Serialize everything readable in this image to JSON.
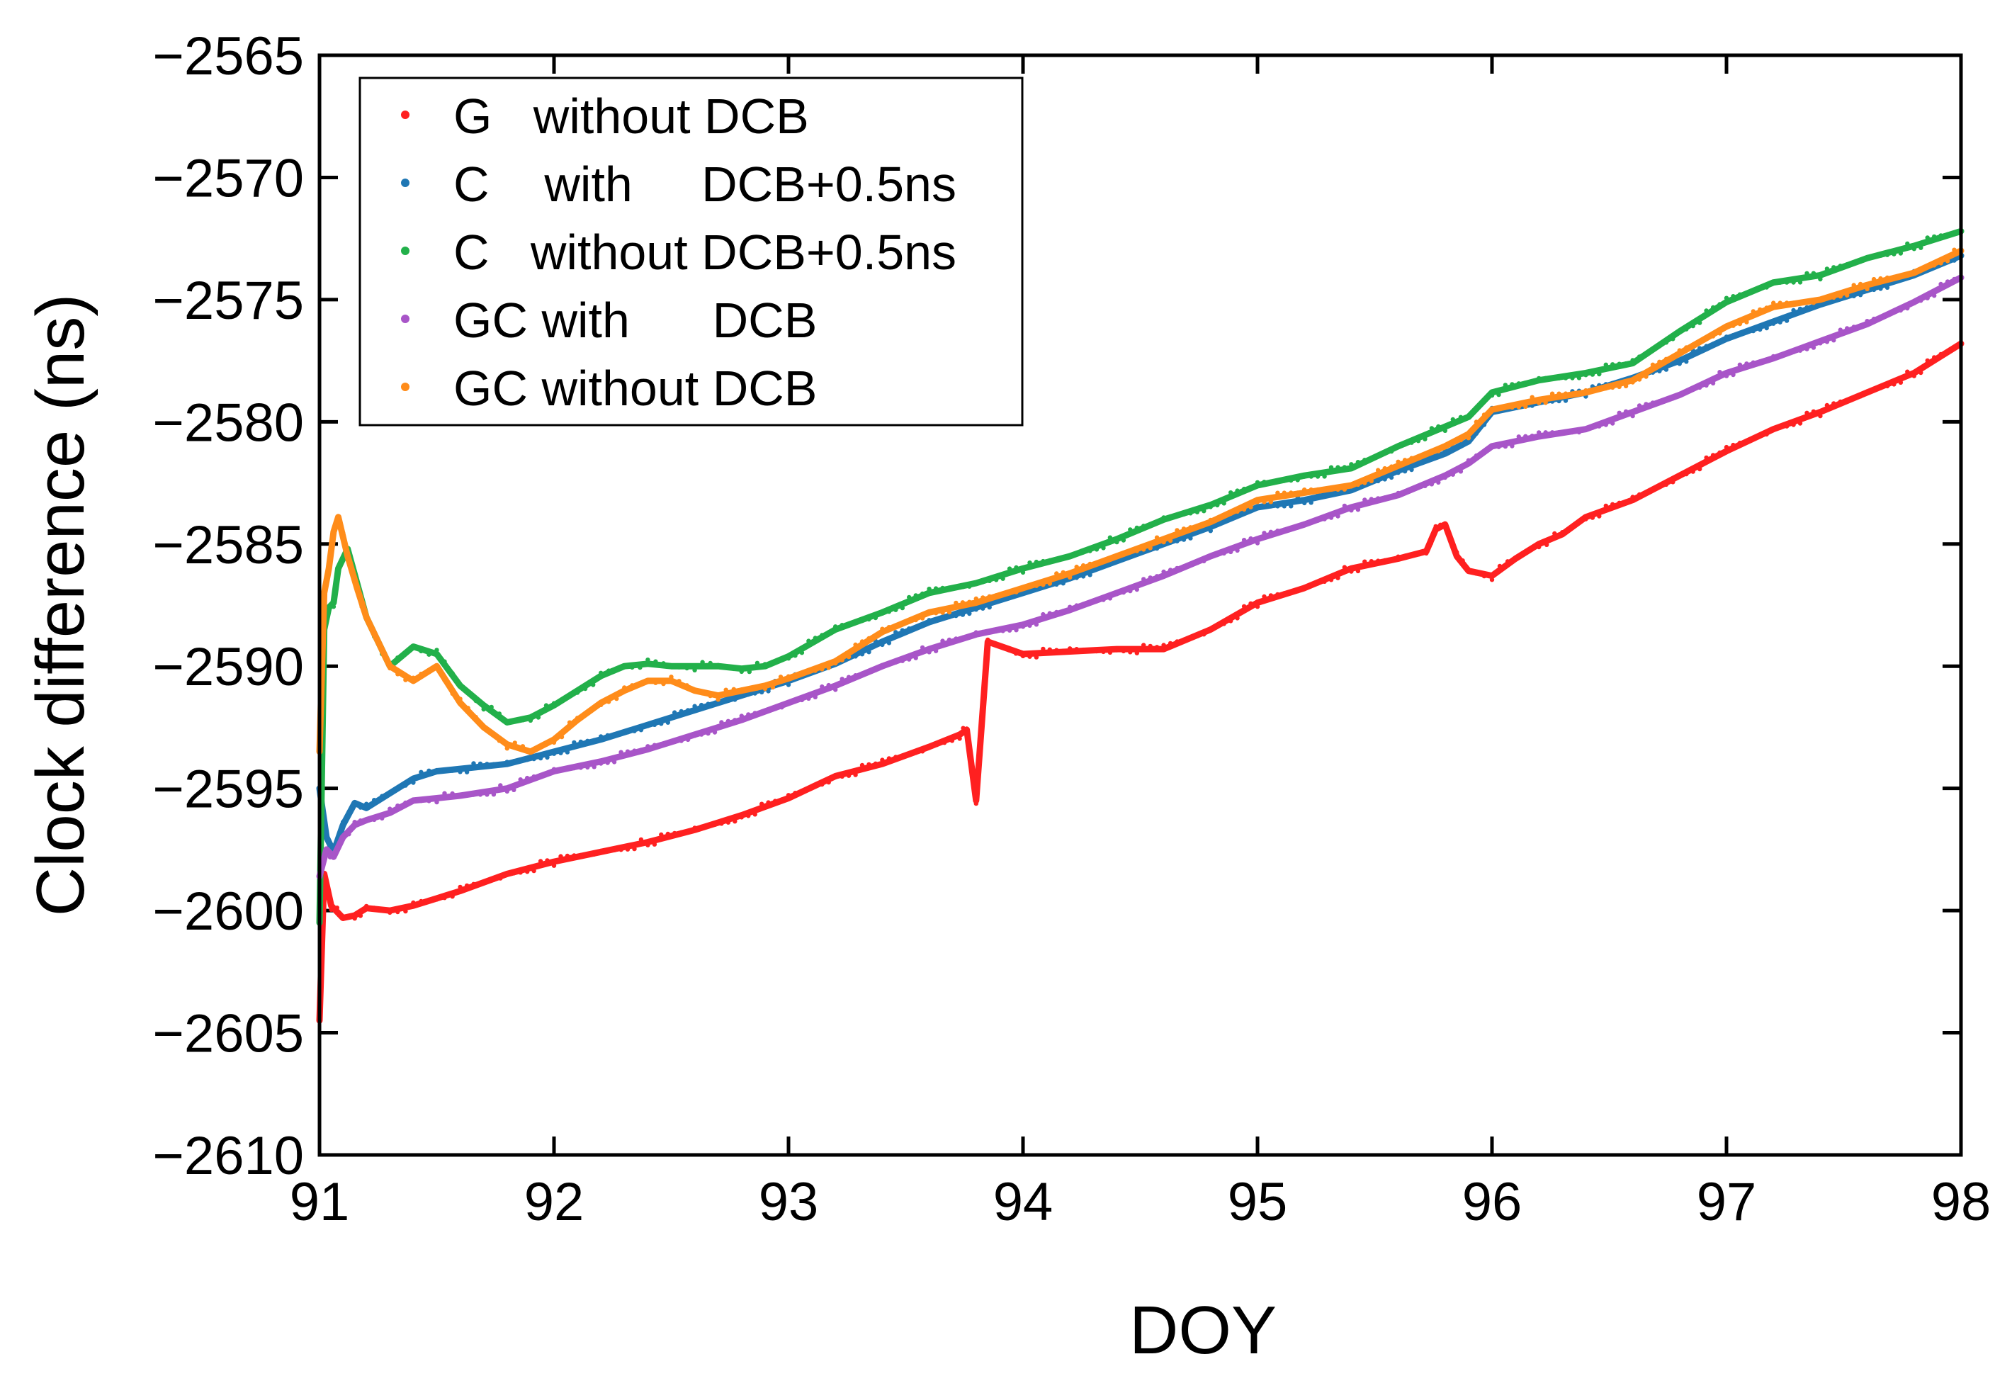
{
  "chart_data": {
    "type": "scatter",
    "title": "",
    "xlabel": "DOY",
    "ylabel": "Clock difference (ns)",
    "xlim": [
      91,
      98
    ],
    "ylim": [
      -2610,
      -2565
    ],
    "xticks": [
      "91",
      "92",
      "93",
      "94",
      "95",
      "96",
      "97",
      "98"
    ],
    "yticks": [
      "−2565",
      "−2570",
      "−2575",
      "−2580",
      "−2585",
      "−2590",
      "−2595",
      "−2600",
      "−2605",
      "−2610"
    ],
    "grid": false,
    "legend_position": "top-left",
    "series": [
      {
        "name": "G   without DCB",
        "color": "#ff2020",
        "x": [
          91.0,
          91.02,
          91.05,
          91.1,
          91.15,
          91.2,
          91.3,
          91.4,
          91.5,
          91.6,
          91.8,
          92.0,
          92.2,
          92.4,
          92.6,
          92.8,
          93.0,
          93.2,
          93.4,
          93.6,
          93.73,
          93.76,
          93.8,
          93.85,
          94.0,
          94.2,
          94.4,
          94.6,
          94.8,
          95.0,
          95.2,
          95.4,
          95.6,
          95.72,
          95.76,
          95.8,
          95.85,
          95.9,
          96.0,
          96.1,
          96.2,
          96.3,
          96.4,
          96.6,
          96.8,
          97.0,
          97.2,
          97.4,
          97.6,
          97.8,
          98.0
        ],
        "y": [
          -2604.5,
          -2598.5,
          -2599.8,
          -2600.3,
          -2600.2,
          -2599.9,
          -2600.0,
          -2599.8,
          -2599.5,
          -2599.2,
          -2598.5,
          -2598.0,
          -2597.6,
          -2597.2,
          -2596.7,
          -2596.1,
          -2595.4,
          -2594.5,
          -2594.0,
          -2593.3,
          -2592.8,
          -2592.6,
          -2595.5,
          -2589.0,
          -2589.5,
          -2589.4,
          -2589.3,
          -2589.3,
          -2588.5,
          -2587.4,
          -2586.8,
          -2586.0,
          -2585.6,
          -2585.3,
          -2584.4,
          -2584.2,
          -2585.5,
          -2586.1,
          -2586.3,
          -2585.6,
          -2585.0,
          -2584.6,
          -2583.9,
          -2583.2,
          -2582.2,
          -2581.2,
          -2580.3,
          -2579.6,
          -2578.8,
          -2578.0,
          -2576.8
        ]
      },
      {
        "name": "C    with     DCB+0.5ns",
        "color": "#1f77b4",
        "x": [
          91.0,
          91.03,
          91.06,
          91.1,
          91.15,
          91.2,
          91.3,
          91.4,
          91.5,
          91.6,
          91.8,
          92.0,
          92.2,
          92.4,
          92.6,
          92.8,
          93.0,
          93.2,
          93.4,
          93.6,
          93.8,
          94.0,
          94.2,
          94.4,
          94.6,
          94.8,
          95.0,
          95.2,
          95.4,
          95.6,
          95.8,
          95.9,
          96.0,
          96.2,
          96.4,
          96.6,
          96.8,
          97.0,
          97.2,
          97.4,
          97.6,
          97.8,
          98.0
        ],
        "y": [
          -2595.0,
          -2597.0,
          -2597.6,
          -2596.5,
          -2595.6,
          -2595.8,
          -2595.2,
          -2594.6,
          -2594.3,
          -2594.2,
          -2594.0,
          -2593.5,
          -2593.0,
          -2592.4,
          -2591.8,
          -2591.2,
          -2590.6,
          -2589.9,
          -2589.0,
          -2588.2,
          -2587.6,
          -2587.0,
          -2586.4,
          -2585.7,
          -2585.0,
          -2584.3,
          -2583.5,
          -2583.2,
          -2582.8,
          -2582.0,
          -2581.3,
          -2580.8,
          -2579.6,
          -2579.2,
          -2578.8,
          -2578.2,
          -2577.5,
          -2576.6,
          -2575.9,
          -2575.2,
          -2574.6,
          -2574.0,
          -2573.2
        ]
      },
      {
        "name": "C   without DCB+0.5ns",
        "color": "#22b04a",
        "x": [
          91.0,
          91.02,
          91.04,
          91.06,
          91.08,
          91.12,
          91.16,
          91.2,
          91.3,
          91.4,
          91.5,
          91.6,
          91.7,
          91.8,
          91.9,
          92.0,
          92.1,
          92.2,
          92.3,
          92.4,
          92.5,
          92.6,
          92.7,
          92.8,
          92.9,
          93.0,
          93.2,
          93.4,
          93.6,
          93.8,
          94.0,
          94.2,
          94.4,
          94.6,
          94.8,
          95.0,
          95.2,
          95.4,
          95.6,
          95.8,
          95.9,
          96.0,
          96.2,
          96.4,
          96.6,
          96.8,
          97.0,
          97.2,
          97.4,
          97.6,
          97.8,
          98.0
        ],
        "y": [
          -2600.5,
          -2588.5,
          -2587.6,
          -2587.4,
          -2586.0,
          -2585.2,
          -2586.6,
          -2588.0,
          -2590.0,
          -2589.2,
          -2589.5,
          -2590.8,
          -2591.6,
          -2592.3,
          -2592.1,
          -2591.6,
          -2591.0,
          -2590.4,
          -2590.0,
          -2589.9,
          -2590.0,
          -2590.0,
          -2590.0,
          -2590.1,
          -2590.0,
          -2589.6,
          -2588.5,
          -2587.8,
          -2587.0,
          -2586.6,
          -2586.0,
          -2585.5,
          -2584.8,
          -2584.0,
          -2583.4,
          -2582.6,
          -2582.2,
          -2581.9,
          -2581.0,
          -2580.2,
          -2579.8,
          -2578.8,
          -2578.3,
          -2578.0,
          -2577.6,
          -2576.3,
          -2575.1,
          -2574.3,
          -2574.0,
          -2573.3,
          -2572.8,
          -2572.2
        ]
      },
      {
        "name": "GC with      DCB",
        "color": "#a855c8",
        "x": [
          91.0,
          91.03,
          91.06,
          91.1,
          91.15,
          91.2,
          91.3,
          91.4,
          91.5,
          91.6,
          91.8,
          92.0,
          92.2,
          92.4,
          92.6,
          92.8,
          93.0,
          93.2,
          93.4,
          93.6,
          93.8,
          94.0,
          94.2,
          94.4,
          94.6,
          94.8,
          95.0,
          95.2,
          95.4,
          95.6,
          95.8,
          95.9,
          96.0,
          96.2,
          96.4,
          96.6,
          96.8,
          97.0,
          97.2,
          97.4,
          97.6,
          97.8,
          98.0
        ],
        "y": [
          -2598.6,
          -2597.5,
          -2597.8,
          -2597.0,
          -2596.5,
          -2596.3,
          -2596.0,
          -2595.5,
          -2595.4,
          -2595.3,
          -2595.0,
          -2594.3,
          -2593.9,
          -2593.4,
          -2592.8,
          -2592.2,
          -2591.5,
          -2590.8,
          -2590.0,
          -2589.3,
          -2588.7,
          -2588.3,
          -2587.7,
          -2587.0,
          -2586.3,
          -2585.5,
          -2584.8,
          -2584.2,
          -2583.5,
          -2583.0,
          -2582.2,
          -2581.7,
          -2581.0,
          -2580.6,
          -2580.3,
          -2579.6,
          -2578.9,
          -2578.0,
          -2577.4,
          -2576.7,
          -2576.0,
          -2575.1,
          -2574.1
        ]
      },
      {
        "name": "GC without DCB",
        "color": "#ff8c1a",
        "x": [
          91.0,
          91.02,
          91.04,
          91.06,
          91.08,
          91.12,
          91.16,
          91.2,
          91.3,
          91.4,
          91.5,
          91.6,
          91.7,
          91.8,
          91.9,
          92.0,
          92.1,
          92.2,
          92.3,
          92.4,
          92.5,
          92.6,
          92.7,
          92.8,
          92.9,
          93.0,
          93.2,
          93.4,
          93.6,
          93.8,
          94.0,
          94.2,
          94.4,
          94.6,
          94.8,
          95.0,
          95.2,
          95.4,
          95.6,
          95.8,
          95.9,
          96.0,
          96.2,
          96.4,
          96.6,
          96.8,
          97.0,
          97.2,
          97.4,
          97.6,
          97.8,
          98.0
        ],
        "y": [
          -2593.5,
          -2587.0,
          -2586.0,
          -2584.5,
          -2583.9,
          -2585.5,
          -2586.8,
          -2588.0,
          -2590.0,
          -2590.6,
          -2590.0,
          -2591.5,
          -2592.5,
          -2593.2,
          -2593.5,
          -2593.0,
          -2592.2,
          -2591.5,
          -2591.0,
          -2590.6,
          -2590.6,
          -2591.0,
          -2591.2,
          -2591.0,
          -2590.8,
          -2590.5,
          -2589.8,
          -2588.6,
          -2587.8,
          -2587.4,
          -2586.8,
          -2586.2,
          -2585.5,
          -2584.8,
          -2584.1,
          -2583.2,
          -2582.9,
          -2582.6,
          -2581.8,
          -2581.0,
          -2580.5,
          -2579.5,
          -2579.1,
          -2578.8,
          -2578.3,
          -2577.2,
          -2576.1,
          -2575.3,
          -2575.0,
          -2574.4,
          -2573.9,
          -2573.0
        ]
      }
    ]
  }
}
